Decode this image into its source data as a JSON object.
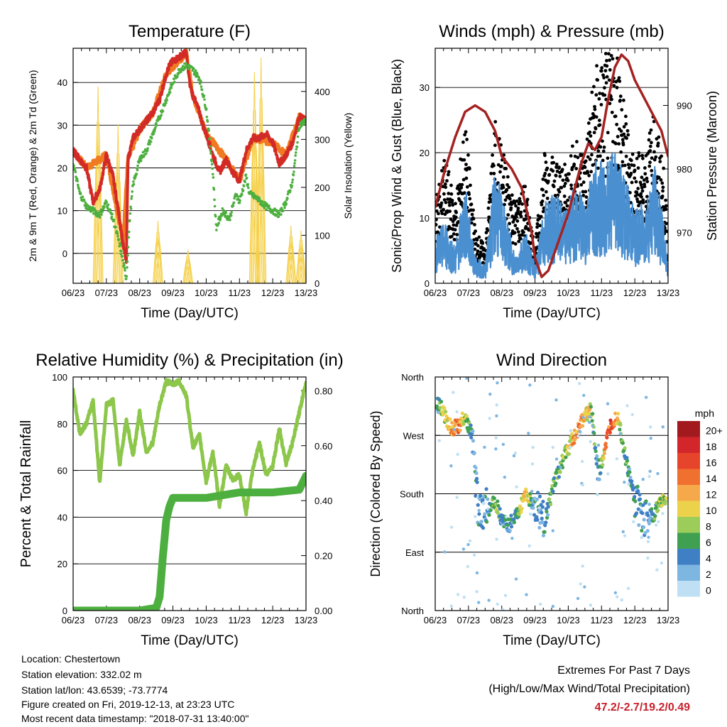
{
  "chart_data": [
    {
      "type": "line",
      "title": "Temperature (F)",
      "xlabel": "Time (Day/UTC)",
      "ylabel": "2m & 9m T (Red, Orange) & 2m Td (Green)",
      "y2label": "Solar Insolation (Yellow)",
      "x_ticks": [
        "06/23",
        "07/23",
        "08/23",
        "09/23",
        "10/23",
        "11/23",
        "12/23",
        "13/23"
      ],
      "xlim": [
        6,
        13
      ],
      "ylim": [
        -7,
        48
      ],
      "y_ticks": [
        0,
        10,
        20,
        30,
        40
      ],
      "y2lim": [
        0,
        490
      ],
      "y2_ticks": [
        0,
        100,
        200,
        300,
        400
      ],
      "grid": "horizontal",
      "series": [
        {
          "name": "2m T",
          "color": "#d22a26",
          "x": [
            6.0,
            6.2,
            6.4,
            6.6,
            6.8,
            7.0,
            7.2,
            7.4,
            7.5,
            7.6,
            7.65,
            7.8,
            8.0,
            8.2,
            8.4,
            8.6,
            8.8,
            8.9,
            9.0,
            9.2,
            9.4,
            9.5,
            9.6,
            9.8,
            9.9,
            10.0,
            10.2,
            10.4,
            10.6,
            10.8,
            11.0,
            11.2,
            11.4,
            11.6,
            11.8,
            12.0,
            12.2,
            12.4,
            12.6,
            12.8,
            13.0
          ],
          "y": [
            24,
            22,
            20,
            12,
            15,
            23,
            18,
            8,
            2,
            -2,
            22,
            27,
            29,
            31,
            33,
            36,
            42,
            44,
            45,
            46,
            47,
            40,
            37,
            33,
            30,
            28,
            23,
            19,
            22,
            19,
            17,
            24,
            27,
            27,
            28,
            26,
            21,
            23,
            26,
            32,
            31
          ]
        },
        {
          "name": "9m T",
          "color": "#f07a22",
          "x": [
            6.0,
            6.4,
            7.0,
            7.5,
            7.65,
            8.0,
            8.4,
            8.8,
            9.4,
            9.6,
            10.0,
            10.6,
            11.0,
            11.4,
            12.0,
            12.4,
            12.8,
            13.0
          ],
          "y": [
            24,
            20,
            23,
            3,
            22,
            29,
            33,
            42,
            47,
            37,
            28,
            22,
            17,
            27,
            26,
            23,
            32,
            31
          ]
        },
        {
          "name": "2m Td",
          "color": "#4daf3f",
          "x": [
            6.0,
            6.2,
            6.4,
            6.6,
            6.8,
            7.0,
            7.2,
            7.4,
            7.6,
            7.7,
            7.8,
            8.0,
            8.2,
            8.4,
            8.6,
            8.8,
            9.0,
            9.2,
            9.4,
            9.6,
            9.8,
            10.0,
            10.2,
            10.3,
            10.5,
            10.7,
            10.9,
            11.0,
            11.2,
            11.3,
            11.5,
            11.8,
            12.0,
            12.2,
            12.4,
            12.6,
            12.8,
            13.0
          ],
          "y": [
            21,
            14,
            11,
            10,
            9,
            12,
            8,
            2,
            -6,
            8,
            16,
            22,
            24,
            28,
            32,
            36,
            40,
            43,
            44,
            43,
            41,
            34,
            19,
            6,
            10,
            8,
            14,
            12,
            18,
            14,
            13,
            11,
            10,
            9,
            12,
            17,
            30,
            31
          ]
        },
        {
          "name": "Solar Insolation",
          "color": "#f5d04a",
          "axis": "right",
          "peaks": [
            {
              "x": 6.75,
              "y": 410
            },
            {
              "x": 7.35,
              "y": 330
            },
            {
              "x": 8.55,
              "y": 130
            },
            {
              "x": 9.45,
              "y": 70
            },
            {
              "x": 11.45,
              "y": 440
            },
            {
              "x": 11.65,
              "y": 470
            },
            {
              "x": 12.55,
              "y": 120
            },
            {
              "x": 12.85,
              "y": 110
            }
          ]
        }
      ]
    },
    {
      "type": "scatter",
      "title": "Winds (mph) & Pressure (mb)",
      "xlabel": "Time (Day/UTC)",
      "ylabel": "Sonic/Prop Wind & Gust (Blue, Black)",
      "y2label": "Station Pressure (Maroon)",
      "x_ticks": [
        "06/23",
        "07/23",
        "08/23",
        "09/23",
        "10/23",
        "11/23",
        "12/23",
        "13/23"
      ],
      "xlim": [
        6,
        13
      ],
      "ylim": [
        0,
        36
      ],
      "y_ticks": [
        0,
        10,
        20,
        30
      ],
      "y2lim": [
        962,
        999
      ],
      "y2_ticks": [
        970,
        980,
        990
      ],
      "grid": "horizontal",
      "series": [
        {
          "name": "Wind",
          "color": "#4a8fd0",
          "x": [
            6.0,
            6.3,
            6.6,
            6.9,
            7.2,
            7.5,
            7.8,
            8.1,
            8.4,
            8.7,
            9.0,
            9.3,
            9.6,
            9.9,
            10.2,
            10.5,
            10.8,
            11.1,
            11.4,
            11.7,
            12.0,
            12.3,
            12.6,
            12.9,
            13.0
          ],
          "y": [
            5,
            7,
            4,
            11,
            3,
            2,
            13,
            8,
            3,
            6,
            2,
            9,
            10,
            8,
            11,
            9,
            14,
            13,
            16,
            12,
            8,
            9,
            13,
            6,
            2
          ]
        },
        {
          "name": "Gust",
          "color": "#000000",
          "x": [
            6.0,
            6.3,
            6.6,
            6.9,
            7.2,
            7.5,
            7.8,
            8.1,
            8.4,
            8.7,
            9.0,
            9.3,
            9.6,
            9.9,
            10.2,
            10.5,
            10.8,
            11.1,
            11.4,
            11.7,
            12.0,
            12.3,
            12.6,
            12.9,
            13.0
          ],
          "y": [
            9,
            14,
            9,
            18,
            6,
            4,
            18,
            14,
            9,
            11,
            4,
            15,
            14,
            13,
            16,
            15,
            24,
            25,
            30,
            19,
            14,
            15,
            19,
            12,
            4
          ]
        },
        {
          "name": "Pressure",
          "color": "#a42222",
          "axis": "right",
          "x": [
            6.0,
            6.3,
            6.6,
            6.9,
            7.2,
            7.5,
            7.8,
            8.0,
            8.3,
            8.6,
            8.9,
            9.0,
            9.2,
            9.4,
            9.6,
            9.8,
            10.0,
            10.2,
            10.4,
            10.6,
            10.8,
            11.0,
            11.2,
            11.4,
            11.6,
            11.8,
            12.0,
            12.2,
            12.4,
            12.6,
            12.8,
            13.0
          ],
          "y": [
            974,
            980,
            985,
            989,
            990,
            989,
            986,
            982,
            980,
            977,
            970,
            966,
            963,
            964,
            967,
            970,
            973,
            977,
            981,
            984,
            983,
            985,
            991,
            996,
            998,
            997,
            994,
            992,
            990,
            988,
            986,
            982
          ]
        }
      ]
    },
    {
      "type": "line",
      "title": "Relative Humidity (%) & Precipitation (in)",
      "xlabel": "Time (Day/UTC)",
      "ylabel": "Percent & Total Rainfall",
      "x_ticks": [
        "06/23",
        "07/23",
        "08/23",
        "09/23",
        "10/23",
        "11/23",
        "12/23",
        "13/23"
      ],
      "xlim": [
        6,
        13
      ],
      "ylim": [
        0,
        100
      ],
      "y_ticks": [
        0,
        20,
        40,
        60,
        80,
        100
      ],
      "y2lim": [
        0,
        0.85
      ],
      "y2_ticks": [
        "0.00",
        "0.20",
        "0.40",
        "0.60",
        "0.80"
      ],
      "grid": "horizontal",
      "series": [
        {
          "name": "Relative Humidity",
          "color": "#8cc64a",
          "x": [
            6.0,
            6.2,
            6.4,
            6.6,
            6.8,
            7.0,
            7.2,
            7.4,
            7.6,
            7.8,
            8.0,
            8.2,
            8.4,
            8.6,
            8.8,
            9.0,
            9.2,
            9.4,
            9.6,
            9.8,
            10.0,
            10.2,
            10.4,
            10.6,
            10.8,
            11.0,
            11.2,
            11.4,
            11.6,
            11.8,
            12.0,
            12.2,
            12.4,
            12.6,
            12.8,
            13.0
          ],
          "y": [
            94,
            76,
            80,
            90,
            55,
            88,
            90,
            62,
            82,
            66,
            85,
            68,
            72,
            88,
            98,
            97,
            98,
            92,
            70,
            75,
            55,
            68,
            45,
            62,
            56,
            58,
            42,
            60,
            72,
            58,
            62,
            78,
            63,
            72,
            85,
            98
          ]
        },
        {
          "name": "Precipitation",
          "color": "#4daf3f",
          "axis": "right",
          "x": [
            6.0,
            8.0,
            8.5,
            8.6,
            8.7,
            8.8,
            8.9,
            9.0,
            9.5,
            10.0,
            11.0,
            12.0,
            12.8,
            13.0
          ],
          "y": [
            0.0,
            0.0,
            0.01,
            0.05,
            0.2,
            0.33,
            0.38,
            0.41,
            0.41,
            0.41,
            0.43,
            0.43,
            0.44,
            0.49
          ]
        }
      ]
    },
    {
      "type": "scatter",
      "title": "Wind Direction",
      "xlabel": "Time (Day/UTC)",
      "ylabel": "Direction (Colored By Speed)",
      "x_ticks": [
        "06/23",
        "07/23",
        "08/23",
        "09/23",
        "10/23",
        "11/23",
        "12/23",
        "13/23"
      ],
      "xlim": [
        6,
        13
      ],
      "y_ticks": [
        "North",
        "West",
        "South",
        "East",
        "North"
      ],
      "y_values": [
        360,
        270,
        180,
        90,
        0
      ],
      "grid": "horizontal",
      "colorbar": {
        "title": "mph",
        "labels": [
          "20+",
          "18",
          "16",
          "14",
          "12",
          "10",
          "8",
          "6",
          "4",
          "2",
          "0"
        ],
        "colors": [
          "#a31a1e",
          "#d2262a",
          "#e6452b",
          "#f07030",
          "#f5a94a",
          "#ecd24a",
          "#9ccc5a",
          "#3fa052",
          "#3f7fc4",
          "#7eb6e2",
          "#bfe0f4"
        ]
      },
      "series": [
        {
          "name": "Direction",
          "x": [
            6.1,
            6.3,
            6.5,
            6.7,
            6.9,
            7.1,
            7.3,
            7.6,
            7.8,
            8.0,
            8.2,
            8.5,
            8.7,
            9.0,
            9.3,
            9.6,
            9.9,
            10.1,
            10.3,
            10.5,
            10.7,
            10.9,
            11.1,
            11.3,
            11.5,
            11.7,
            12.0,
            12.3,
            12.6,
            12.8
          ],
          "y": [
            320,
            300,
            280,
            285,
            300,
            270,
            150,
            160,
            170,
            140,
            130,
            150,
            180,
            160,
            140,
            200,
            240,
            260,
            280,
            300,
            310,
            200,
            250,
            290,
            300,
            240,
            170,
            140,
            150,
            170
          ],
          "speed": [
            6,
            9,
            12,
            14,
            8,
            4,
            3,
            3,
            8,
            5,
            4,
            6,
            12,
            3,
            4,
            6,
            8,
            10,
            14,
            12,
            8,
            3,
            12,
            16,
            10,
            6,
            4,
            3,
            6,
            8
          ]
        }
      ]
    }
  ],
  "footer": {
    "location": "Location: Chestertown",
    "elevation": "Station elevation: 332.02 m",
    "latlon": "Station lat/lon: 43.6539; -73.7774",
    "created": "Figure created on Fri, 2019-12-13, at 23:23 UTC",
    "recent": "Most recent data timestamp: \"2018-07-31 13:40:00\""
  },
  "extremes": {
    "title": "Extremes For Past 7 Days",
    "subtitle": "(High/Low/Max Wind/Total Precipitation)",
    "values": "47.2/-2.7/19.2/0.49"
  }
}
